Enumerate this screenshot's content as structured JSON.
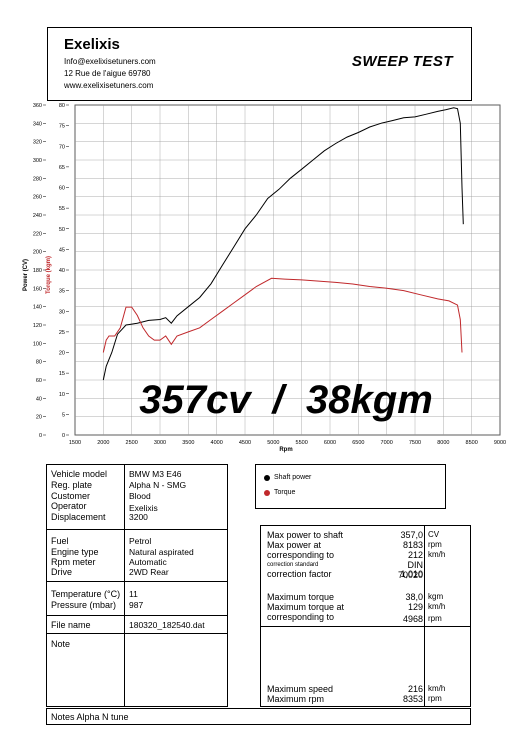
{
  "header": {
    "company": "Exelixis",
    "email": "Info@exelixisetuners.com",
    "address": "12 Rue de l'aigue 69780",
    "website": "www.exelixisetuners.com",
    "test_title": "SWEEP TEST"
  },
  "chart_data": {
    "type": "line",
    "xlabel": "Rpm",
    "ylabel_left": "Power (CV)",
    "ylabel_right": "Torque (kgm)",
    "xlim": [
      1500,
      9000
    ],
    "ylim_power": [
      0,
      360
    ],
    "ylim_torque": [
      0,
      80
    ],
    "x_ticks": [
      "1500",
      "2000",
      "2500",
      "3000",
      "3500",
      "4000",
      "4500",
      "5000",
      "5500",
      "6000",
      "6500",
      "7000",
      "7500",
      "8000",
      "8500",
      "9000"
    ],
    "y_ticks_power": [
      "0",
      "20",
      "40",
      "60",
      "80",
      "100",
      "120",
      "140",
      "160",
      "180",
      "200",
      "220",
      "240",
      "260",
      "280",
      "300",
      "320",
      "340",
      "360"
    ],
    "y_ticks_torque": [
      "0",
      "5",
      "10",
      "15",
      "20",
      "25",
      "30",
      "35",
      "40",
      "45",
      "50",
      "55",
      "60",
      "65",
      "70",
      "75",
      "80"
    ],
    "grid": true,
    "annotation": "357cv  /  38kgm",
    "series": [
      {
        "name": "Shaft power",
        "color": "#000000",
        "axis": "power",
        "points": [
          [
            2000,
            60
          ],
          [
            2050,
            75
          ],
          [
            2150,
            90
          ],
          [
            2250,
            110
          ],
          [
            2400,
            120
          ],
          [
            2600,
            122
          ],
          [
            2800,
            125
          ],
          [
            3000,
            126
          ],
          [
            3100,
            128
          ],
          [
            3200,
            122
          ],
          [
            3300,
            130
          ],
          [
            3500,
            140
          ],
          [
            3700,
            150
          ],
          [
            3900,
            165
          ],
          [
            4100,
            185
          ],
          [
            4300,
            205
          ],
          [
            4500,
            225
          ],
          [
            4700,
            240
          ],
          [
            4900,
            258
          ],
          [
            5100,
            268
          ],
          [
            5300,
            280
          ],
          [
            5500,
            290
          ],
          [
            5700,
            300
          ],
          [
            5900,
            310
          ],
          [
            6100,
            318
          ],
          [
            6300,
            325
          ],
          [
            6500,
            330
          ],
          [
            6700,
            336
          ],
          [
            6900,
            340
          ],
          [
            7100,
            343
          ],
          [
            7300,
            346
          ],
          [
            7500,
            347
          ],
          [
            7700,
            350
          ],
          [
            7900,
            353
          ],
          [
            8050,
            355
          ],
          [
            8183,
            357
          ],
          [
            8250,
            356
          ],
          [
            8300,
            340
          ],
          [
            8330,
            270
          ],
          [
            8353,
            230
          ]
        ]
      },
      {
        "name": "Torque",
        "color": "#c0282b",
        "axis": "torque",
        "points": [
          [
            2000,
            20
          ],
          [
            2050,
            23
          ],
          [
            2100,
            24
          ],
          [
            2200,
            24
          ],
          [
            2300,
            26
          ],
          [
            2400,
            31
          ],
          [
            2500,
            31
          ],
          [
            2600,
            29
          ],
          [
            2700,
            26
          ],
          [
            2800,
            24
          ],
          [
            2900,
            23
          ],
          [
            3000,
            23
          ],
          [
            3100,
            24
          ],
          [
            3200,
            22
          ],
          [
            3300,
            24
          ],
          [
            3500,
            25
          ],
          [
            3700,
            26
          ],
          [
            3900,
            28
          ],
          [
            4100,
            30
          ],
          [
            4300,
            32
          ],
          [
            4500,
            34
          ],
          [
            4700,
            36
          ],
          [
            4968,
            38
          ],
          [
            5200,
            37.8
          ],
          [
            5500,
            37.6
          ],
          [
            5800,
            37.3
          ],
          [
            6100,
            37
          ],
          [
            6400,
            36.6
          ],
          [
            6700,
            36
          ],
          [
            7000,
            35.6
          ],
          [
            7300,
            35
          ],
          [
            7600,
            34
          ],
          [
            7900,
            33
          ],
          [
            8100,
            32.5
          ],
          [
            8250,
            31.5
          ],
          [
            8300,
            28
          ],
          [
            8330,
            20
          ]
        ]
      }
    ]
  },
  "legend": {
    "items": [
      {
        "label": "Shaft power",
        "color": "#000000"
      },
      {
        "label": "Torque",
        "color": "#c0282b"
      }
    ]
  },
  "vehicle": {
    "labels": [
      "Vehicle model",
      "Reg. plate",
      "Customer",
      "Operator",
      "Displacement"
    ],
    "values": [
      "BMW M3 E46",
      "Alpha N - SMG",
      "Blood",
      "Exelixis",
      "3200"
    ]
  },
  "engine": {
    "labels": [
      "Fuel",
      "Engine type",
      "Rpm meter",
      "Drive"
    ],
    "values": [
      "Petrol",
      "Natural aspirated",
      "Automatic",
      "2WD Rear"
    ]
  },
  "conditions": {
    "labels": [
      "Temperature (°C)",
      "Pressure (mbar)"
    ],
    "values": [
      "11",
      "987"
    ]
  },
  "file": {
    "label": "File name",
    "value": "180320_182540.dat"
  },
  "note": {
    "label": "Note"
  },
  "results": {
    "max_power_label_1": "Max power to shaft",
    "max_power_label_2": "Max power at",
    "max_power_label_3": "corresponding to",
    "correction_std_label": "correction standard",
    "correction_factor_label": "correction factor",
    "max_power_value": "357,0",
    "max_power_unit": "CV",
    "max_power_rpm": "8183",
    "max_power_rpm_unit": "rpm",
    "max_power_speed": "212",
    "max_power_speed_unit": "km/h",
    "correction_std_value": "DIN 70020",
    "correction_factor_value": "1,010",
    "max_torque_label_1": "Maximum torque",
    "max_torque_label_2": "Maximum torque at",
    "max_torque_label_3": "corresponding to",
    "max_torque_value": "38,0",
    "max_torque_unit": "kgm",
    "max_torque_speed": "129",
    "max_torque_speed_unit": "km/h",
    "max_torque_rpm": "4968",
    "max_torque_rpm_unit": "rpm",
    "max_speed_label": "Maximum speed",
    "max_speed_value": "216",
    "max_speed_unit": "km/h",
    "max_rpm_label": "Maximum rpm",
    "max_rpm_value": "8353",
    "max_rpm_unit": "rpm"
  },
  "notes_footer": "Notes  Alpha N tune"
}
